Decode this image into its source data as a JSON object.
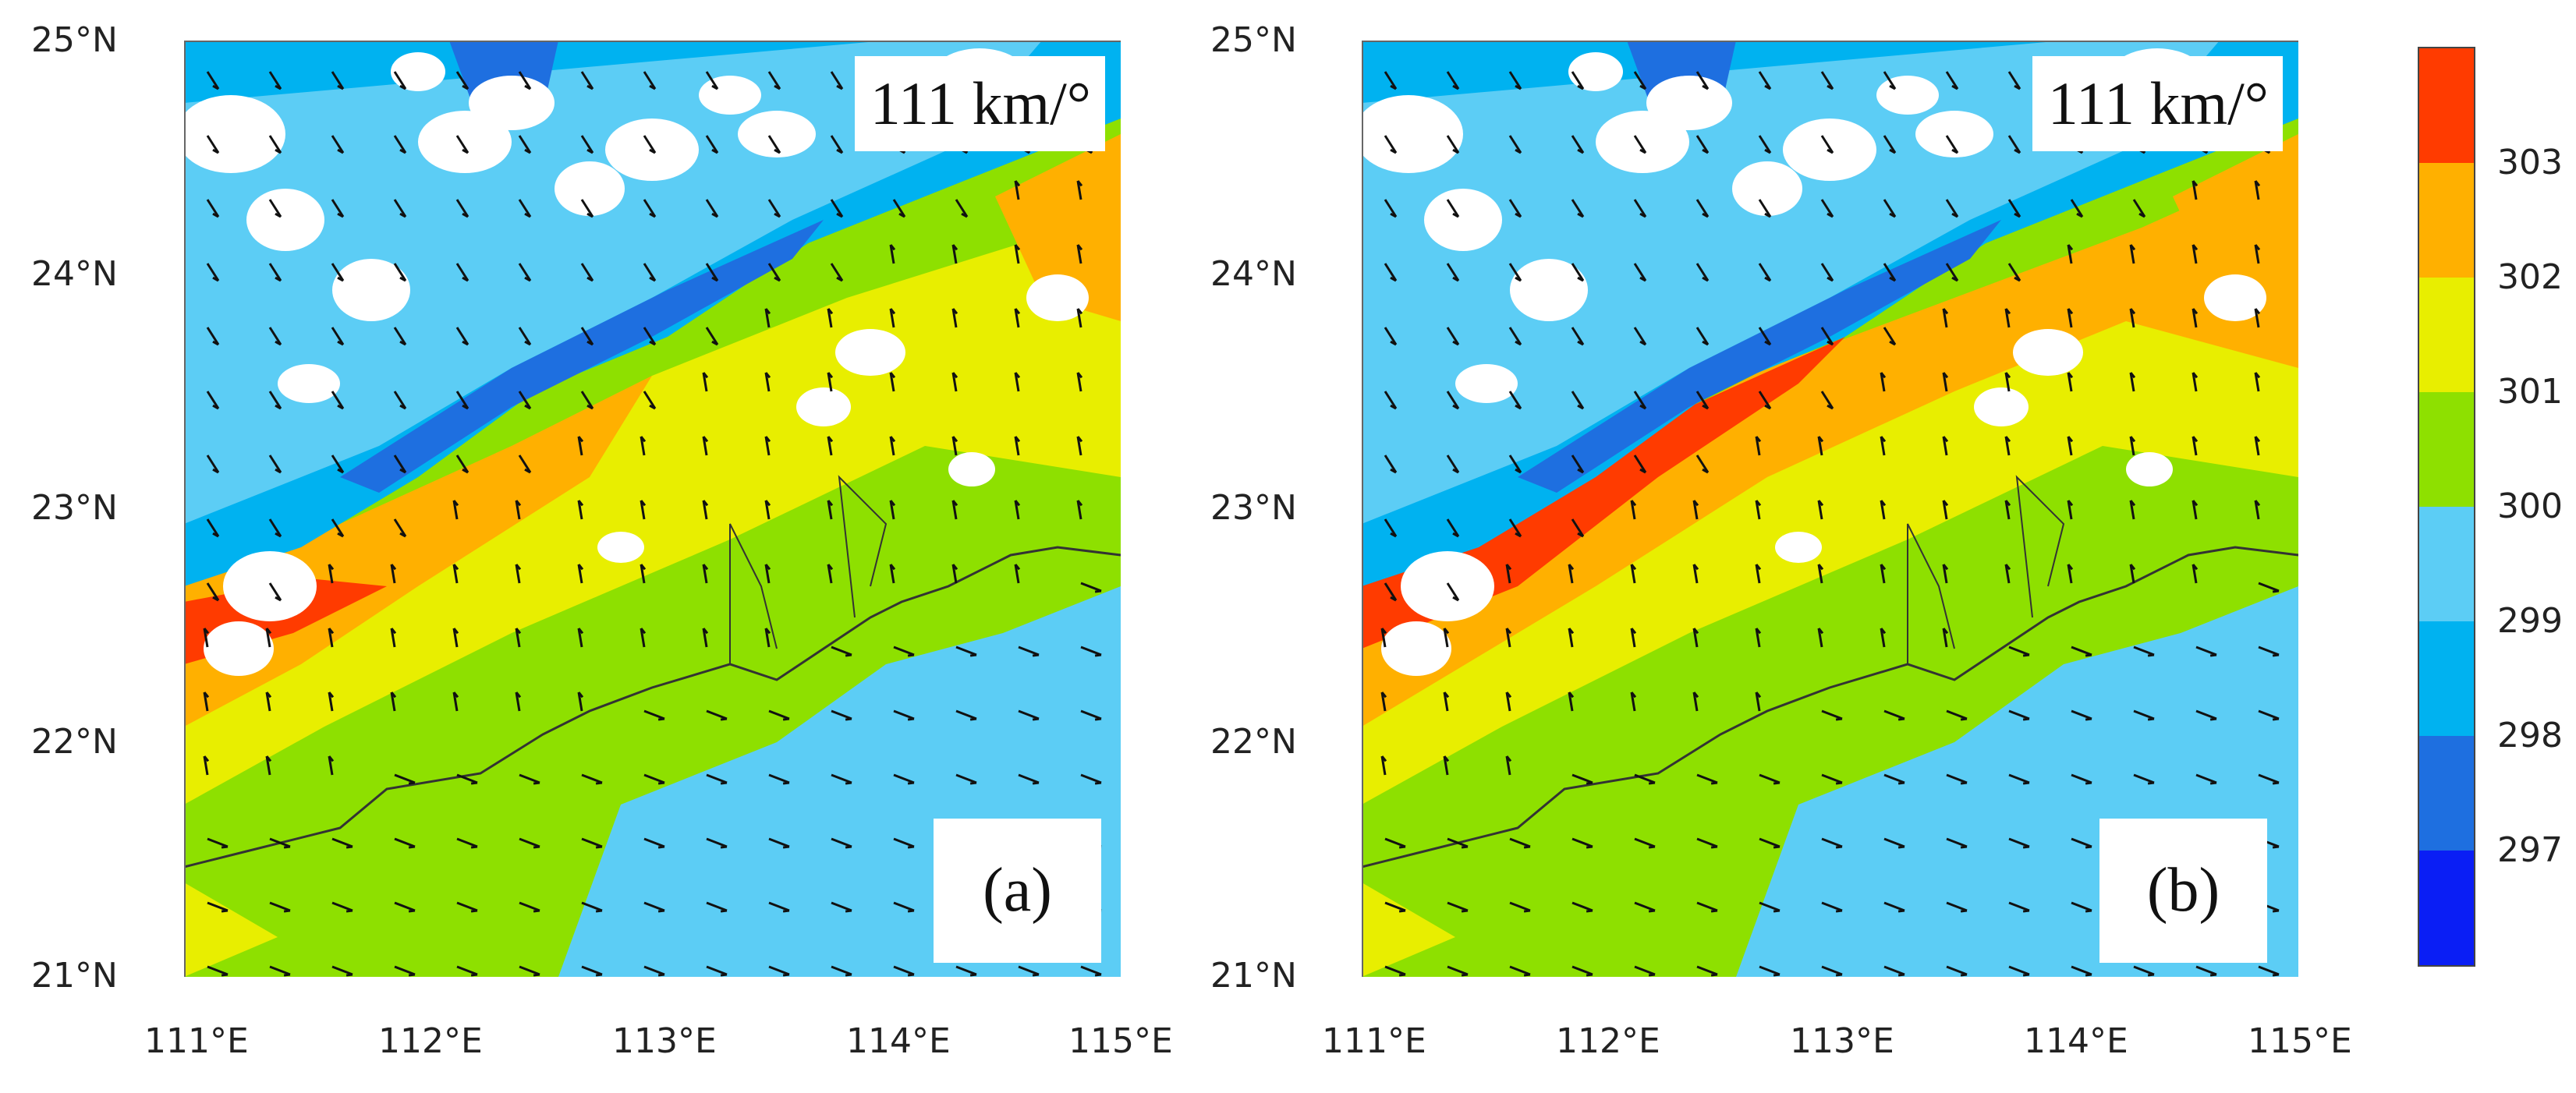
{
  "panels": [
    {
      "id": "a",
      "label": "(a)",
      "scale_text": "111 km/°"
    },
    {
      "id": "b",
      "label": "(b)",
      "scale_text": "111 km/°"
    }
  ],
  "y_ticks": [
    "25°N",
    "24°N",
    "23°N",
    "22°N",
    "21°N"
  ],
  "x_ticks": [
    "111°E",
    "112°E",
    "113°E",
    "114°E",
    "115°E"
  ],
  "colorbar": {
    "labels": [
      "303",
      "302",
      "301",
      "300",
      "299",
      "298",
      "297"
    ],
    "colors": [
      "#ff3b00",
      "#ffb000",
      "#e8ee00",
      "#8ee000",
      "#5ccdf5",
      "#00b2f0",
      "#1e6fe0",
      "#0a1ef5"
    ]
  },
  "colors": {
    "land_white": "#ffffff",
    "coast": "#333333",
    "arrow": "#111111"
  }
}
